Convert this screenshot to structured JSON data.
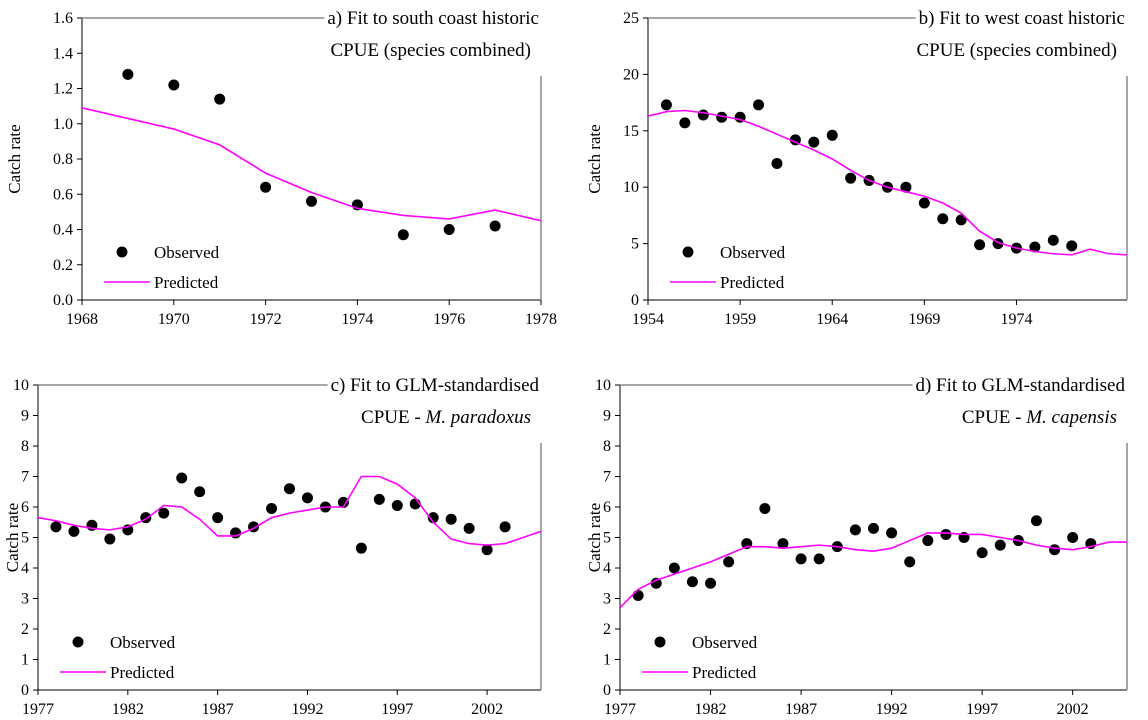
{
  "chart_data": [
    {
      "type": "scatter-line",
      "title": [
        "a) Fit to south coast historic",
        "CPUE (species combined)"
      ],
      "y_label": "Catch rate",
      "xlim": [
        1968,
        1978
      ],
      "xticks": [
        1968,
        1970,
        1972,
        1974,
        1976,
        1978
      ],
      "ylim": [
        0,
        1.6
      ],
      "yticks": [
        {
          "value": 0,
          "label": "0.0"
        },
        0.2,
        0.4,
        0.6,
        0.8,
        {
          "value": 1,
          "label": "1.0"
        },
        1.2,
        1.4,
        1.6
      ],
      "legend": "lower left",
      "series": [
        {
          "name": "Observed",
          "color": "#000000",
          "x": [
            1969,
            1970,
            1971,
            1972,
            1973,
            1974,
            1975,
            1976,
            1977
          ],
          "values": [
            1.28,
            1.22,
            1.14,
            0.64,
            0.56,
            0.54,
            0.37,
            0.4,
            0.42
          ]
        },
        {
          "name": "Predicted",
          "color": "#ff00ff",
          "x": [
            1968,
            1969,
            1970,
            1971,
            1972,
            1973,
            1974,
            1975,
            1976,
            1977,
            1978
          ],
          "values": [
            1.09,
            1.03,
            0.97,
            0.88,
            0.72,
            0.61,
            0.52,
            0.48,
            0.46,
            0.51,
            0.45
          ]
        }
      ]
    },
    {
      "type": "scatter-line",
      "title": [
        "b) Fit to west coast historic",
        "CPUE (species combined)"
      ],
      "y_label": "Catch rate",
      "xlim": [
        1954,
        1980
      ],
      "xticks": [
        1954,
        1959,
        1964,
        1969,
        1974
      ],
      "ylim": [
        0,
        25
      ],
      "yticks": [
        0,
        5,
        10,
        15,
        20,
        25
      ],
      "legend": "lower left",
      "series": [
        {
          "name": "Observed",
          "color": "#000000",
          "x": [
            1955,
            1956,
            1957,
            1958,
            1959,
            1960,
            1961,
            1962,
            1963,
            1964,
            1965,
            1966,
            1967,
            1968,
            1969,
            1970,
            1971,
            1972,
            1973,
            1974,
            1975,
            1976,
            1977
          ],
          "values": [
            17.3,
            15.7,
            16.4,
            16.2,
            16.2,
            17.3,
            12.1,
            14.2,
            14.0,
            14.6,
            10.8,
            10.6,
            10.0,
            10.0,
            8.6,
            7.2,
            7.1,
            4.9,
            5.0,
            4.6,
            4.7,
            5.3,
            4.8
          ]
        },
        {
          "name": "Predicted",
          "color": "#ff00ff",
          "x": [
            1954,
            1955,
            1956,
            1957,
            1958,
            1959,
            1960,
            1961,
            1962,
            1963,
            1964,
            1965,
            1966,
            1967,
            1968,
            1969,
            1970,
            1971,
            1972,
            1973,
            1974,
            1975,
            1976,
            1977,
            1978,
            1979,
            1980
          ],
          "values": [
            16.3,
            16.7,
            16.8,
            16.6,
            16.3,
            16.0,
            15.4,
            14.7,
            14.0,
            13.3,
            12.5,
            11.5,
            10.6,
            10.0,
            9.6,
            9.2,
            8.6,
            7.7,
            6.1,
            5.1,
            4.6,
            4.3,
            4.1,
            4.0,
            4.5,
            4.1,
            4.0
          ]
        }
      ]
    },
    {
      "type": "scatter-line",
      "title": [
        "c) Fit to GLM-standardised",
        "CPUE - "
      ],
      "title_species": "M. paradoxus",
      "y_label": "Catch rate",
      "xlim": [
        1977,
        2005
      ],
      "xticks": [
        1977,
        1982,
        1987,
        1992,
        1997,
        2002
      ],
      "ylim": [
        0,
        10
      ],
      "yticks": [
        0,
        1,
        2,
        3,
        4,
        5,
        6,
        7,
        8,
        9,
        10
      ],
      "legend": "lower left",
      "series": [
        {
          "name": "Observed",
          "color": "#000000",
          "x": [
            1978,
            1979,
            1980,
            1981,
            1982,
            1983,
            1984,
            1985,
            1986,
            1987,
            1988,
            1989,
            1990,
            1991,
            1992,
            1993,
            1994,
            1995,
            1996,
            1997,
            1998,
            1999,
            2000,
            2001,
            2002,
            2003
          ],
          "values": [
            5.35,
            5.2,
            5.4,
            4.95,
            5.25,
            5.65,
            5.8,
            6.95,
            6.5,
            5.65,
            5.15,
            5.35,
            5.95,
            6.6,
            6.3,
            6.0,
            6.15,
            4.65,
            6.25,
            6.05,
            6.1,
            5.65,
            5.6,
            5.3,
            4.6,
            5.35
          ]
        },
        {
          "name": "Predicted",
          "color": "#ff00ff",
          "x": [
            1977,
            1978,
            1979,
            1980,
            1981,
            1982,
            1983,
            1984,
            1985,
            1986,
            1987,
            1988,
            1989,
            1990,
            1991,
            1992,
            1993,
            1994,
            1995,
            1996,
            1997,
            1998,
            1999,
            2000,
            2001,
            2002,
            2003,
            2004,
            2005
          ],
          "values": [
            5.65,
            5.55,
            5.4,
            5.3,
            5.25,
            5.35,
            5.6,
            6.05,
            6.0,
            5.6,
            5.05,
            5.05,
            5.3,
            5.65,
            5.8,
            5.9,
            6.0,
            6.0,
            7.0,
            7.0,
            6.75,
            6.3,
            5.5,
            4.95,
            4.8,
            4.75,
            4.8,
            5.0,
            5.2
          ]
        }
      ]
    },
    {
      "type": "scatter-line",
      "title": [
        "d) Fit to GLM-standardised",
        "CPUE - "
      ],
      "title_species": "M. capensis",
      "y_label": "Catch rate",
      "xlim": [
        1977,
        2005
      ],
      "xticks": [
        1977,
        1982,
        1987,
        1992,
        1997,
        2002
      ],
      "ylim": [
        0,
        10
      ],
      "yticks": [
        0,
        1,
        2,
        3,
        4,
        5,
        6,
        7,
        8,
        9,
        10
      ],
      "legend": "lower left",
      "series": [
        {
          "name": "Observed",
          "color": "#000000",
          "x": [
            1978,
            1979,
            1980,
            1981,
            1982,
            1983,
            1984,
            1985,
            1986,
            1987,
            1988,
            1989,
            1990,
            1991,
            1992,
            1993,
            1994,
            1995,
            1996,
            1997,
            1998,
            1999,
            2000,
            2001,
            2002,
            2003
          ],
          "values": [
            3.1,
            3.5,
            4.0,
            3.55,
            3.5,
            4.2,
            4.8,
            5.95,
            4.8,
            4.3,
            4.3,
            4.7,
            5.25,
            5.3,
            5.15,
            4.2,
            4.9,
            5.1,
            5.0,
            4.5,
            4.75,
            4.9,
            5.55,
            4.6,
            5.0,
            4.8
          ]
        },
        {
          "name": "Predicted",
          "color": "#ff00ff",
          "x": [
            1977,
            1978,
            1979,
            1980,
            1981,
            1982,
            1983,
            1984,
            1985,
            1986,
            1987,
            1988,
            1989,
            1990,
            1991,
            1992,
            1993,
            1994,
            1995,
            1996,
            1997,
            1998,
            1999,
            2000,
            2001,
            2002,
            2003,
            2004,
            2005
          ],
          "values": [
            2.7,
            3.3,
            3.6,
            3.8,
            4.0,
            4.2,
            4.45,
            4.7,
            4.7,
            4.65,
            4.7,
            4.75,
            4.7,
            4.6,
            4.55,
            4.65,
            4.9,
            5.15,
            5.15,
            5.1,
            5.1,
            5.0,
            4.9,
            4.75,
            4.65,
            4.6,
            4.7,
            4.85,
            4.85
          ]
        }
      ]
    }
  ]
}
